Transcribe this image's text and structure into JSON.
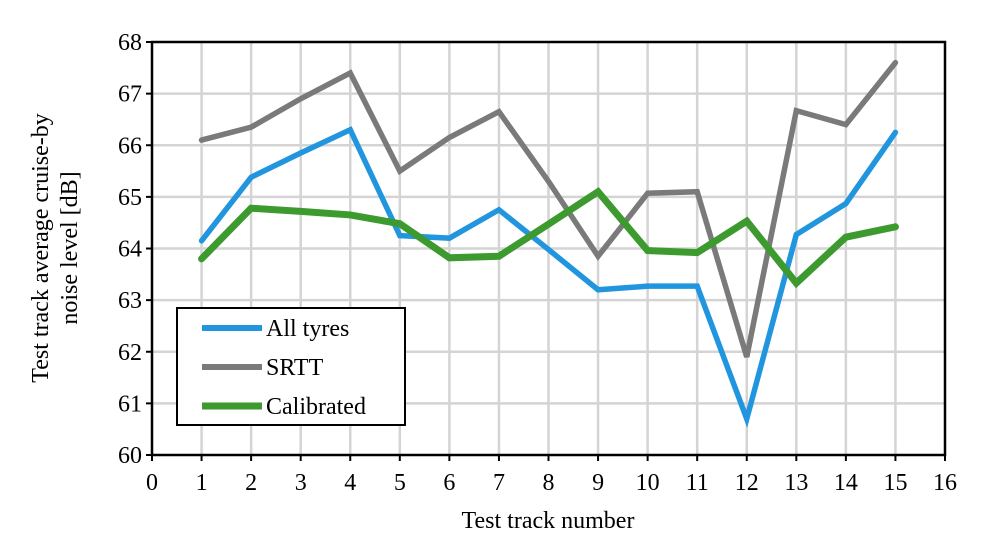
{
  "chart_data": {
    "type": "line",
    "title": "",
    "xlabel": "Test track number",
    "ylabel_lines": [
      "Test track average cruise-by",
      "noise level [dB]"
    ],
    "xlim": [
      0,
      16
    ],
    "ylim": [
      60,
      68
    ],
    "xticks": [
      0,
      1,
      2,
      3,
      4,
      5,
      6,
      7,
      8,
      9,
      10,
      11,
      12,
      13,
      14,
      15,
      16
    ],
    "yticks": [
      60,
      61,
      62,
      63,
      64,
      65,
      66,
      67,
      68
    ],
    "grid": true,
    "legend_placement": "bottom-left",
    "x": [
      1,
      2,
      3,
      4,
      5,
      6,
      7,
      8,
      9,
      10,
      11,
      12,
      13,
      14,
      15
    ],
    "series": [
      {
        "name": "All tyres",
        "color": "#2196df",
        "values": [
          64.15,
          65.38,
          65.85,
          66.3,
          64.25,
          64.2,
          64.75,
          63.98,
          63.2,
          63.27,
          63.27,
          60.7,
          64.27,
          64.87,
          66.25
        ]
      },
      {
        "name": "SRTT",
        "color": "#7a7a7a",
        "values": [
          66.1,
          66.35,
          66.9,
          67.4,
          65.5,
          66.15,
          66.65,
          65.3,
          63.85,
          65.07,
          65.1,
          61.9,
          66.67,
          66.4,
          67.6
        ]
      },
      {
        "name": "Calibrated",
        "color": "#3d9a2f",
        "values": [
          63.8,
          64.78,
          64.72,
          64.65,
          64.48,
          63.82,
          63.85,
          64.47,
          65.1,
          63.96,
          63.92,
          64.53,
          63.33,
          64.22,
          64.42
        ]
      }
    ]
  }
}
